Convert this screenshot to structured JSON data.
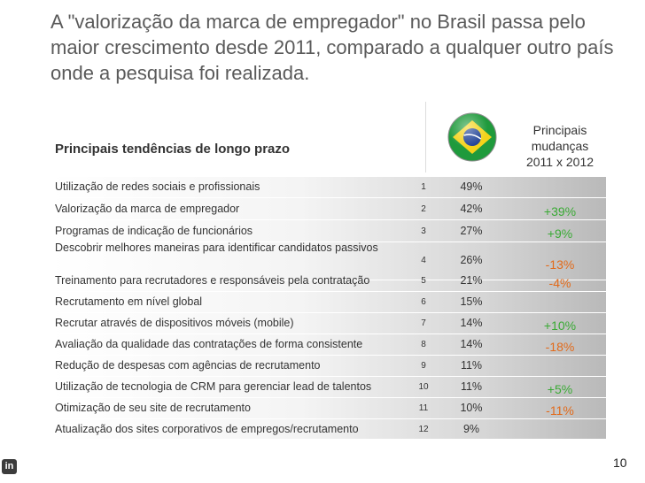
{
  "slide": {
    "title": "A \"valorização da marca de empregador\" no Brasil passa pelo maior crescimento desde 2011, comparado a qualquer outro país onde a pesquisa foi realizada.",
    "subtitle": "Principais tendências de longo prazo",
    "changes_header": [
      "Principais",
      "mudanças",
      "2011 x 2012"
    ],
    "page_number": "10",
    "logo_text": "in"
  },
  "trends": [
    {
      "label": "Utilização de redes sociais e profissionais",
      "rank": "1",
      "pct": "49%",
      "change": "",
      "dir": ""
    },
    {
      "label": "Valorização da marca de empregador",
      "rank": "2",
      "pct": "42%",
      "change": "+39%",
      "dir": "pos"
    },
    {
      "label": "Programas de indicação de funcionários",
      "rank": "3",
      "pct": "27%",
      "change": "+9%",
      "dir": "pos"
    },
    {
      "label": "Descobrir melhores maneiras para identificar candidatos passivos",
      "rank": "4",
      "pct": "26%",
      "change": "-13%",
      "dir": "neg"
    },
    {
      "label": "Treinamento para recrutadores e responsáveis pela contratação",
      "rank": "5",
      "pct": "21%",
      "change": "-4%",
      "dir": "neg"
    },
    {
      "label": "Recrutamento em nível global",
      "rank": "6",
      "pct": "15%",
      "change": "",
      "dir": ""
    },
    {
      "label": "Recrutar através de dispositivos móveis (mobile)",
      "rank": "7",
      "pct": "14%",
      "change": "+10%",
      "dir": "pos"
    },
    {
      "label": "Avaliação da qualidade das contratações de forma consistente",
      "rank": "8",
      "pct": "14%",
      "change": "-18%",
      "dir": "neg"
    },
    {
      "label": "Redução de despesas com agências de recrutamento",
      "rank": "9",
      "pct": "11%",
      "change": "",
      "dir": ""
    },
    {
      "label": "Utilização de tecnologia de CRM para gerenciar lead de talentos",
      "rank": "10",
      "pct": "11%",
      "change": "+5%",
      "dir": "pos"
    },
    {
      "label": "Otimização de seu site de recrutamento",
      "rank": "11",
      "pct": "10%",
      "change": "-11%",
      "dir": "neg"
    },
    {
      "label": "Atualização dos sites corporativos de empregos/recrutamento",
      "rank": "12",
      "pct": "9%",
      "change": "",
      "dir": ""
    }
  ],
  "colors": {
    "positive": "#3aaa35",
    "negative": "#e26a1a",
    "flag_green": "#1f9a3c",
    "flag_yellow": "#f4d31a",
    "flag_blue": "#1c3f94"
  }
}
